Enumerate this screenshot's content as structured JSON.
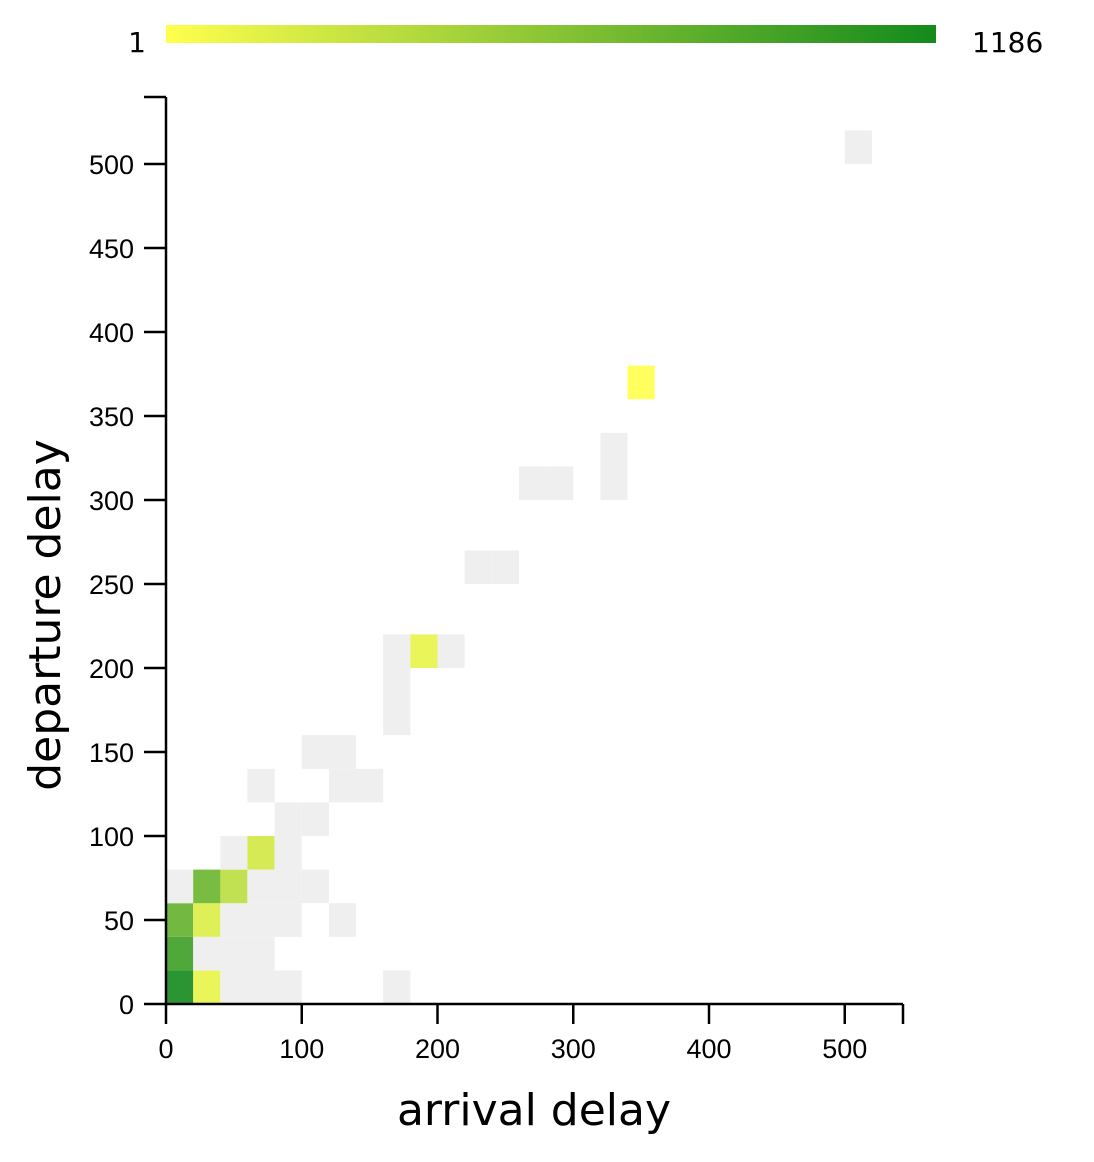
{
  "chart_data": {
    "type": "heatmap",
    "title": "",
    "xlabel": "arrival delay",
    "ylabel": "departure delay",
    "xlim": [
      0,
      545
    ],
    "ylim": [
      0,
      540
    ],
    "x_ticks": [
      0,
      100,
      200,
      300,
      400,
      500
    ],
    "y_ticks": [
      0,
      50,
      100,
      150,
      200,
      250,
      300,
      350,
      400,
      450,
      500
    ],
    "grid": false,
    "legend": {
      "type": "color-scale",
      "placement": "top",
      "min_label": "1",
      "max_label": "1186",
      "min_color": "#ffff4d",
      "max_color": "#138a1c"
    },
    "low_count_color": "#efefef",
    "cells": [
      {
        "x0": 0,
        "x1": 20,
        "y0": 0,
        "y1": 20,
        "count": 1186
      },
      {
        "x0": 20,
        "x1": 40,
        "y0": 0,
        "y1": 20,
        "count": 2
      },
      {
        "x0": 40,
        "x1": 60,
        "y0": 0,
        "y1": 20,
        "count": 0
      },
      {
        "x0": 60,
        "x1": 80,
        "y0": 0,
        "y1": 20,
        "count": 0
      },
      {
        "x0": 80,
        "x1": 100,
        "y0": 0,
        "y1": 20,
        "count": 0
      },
      {
        "x0": 160,
        "x1": 180,
        "y0": 0,
        "y1": 20,
        "count": 0
      },
      {
        "x0": 0,
        "x1": 20,
        "y0": 20,
        "y1": 40,
        "count": 330
      },
      {
        "x0": 20,
        "x1": 40,
        "y0": 20,
        "y1": 40,
        "count": 0
      },
      {
        "x0": 40,
        "x1": 60,
        "y0": 20,
        "y1": 40,
        "count": 0
      },
      {
        "x0": 60,
        "x1": 80,
        "y0": 20,
        "y1": 40,
        "count": 0
      },
      {
        "x0": 0,
        "x1": 20,
        "y0": 40,
        "y1": 60,
        "count": 110
      },
      {
        "x0": 20,
        "x1": 40,
        "y0": 40,
        "y1": 60,
        "count": 3
      },
      {
        "x0": 40,
        "x1": 60,
        "y0": 40,
        "y1": 60,
        "count": 0
      },
      {
        "x0": 60,
        "x1": 80,
        "y0": 40,
        "y1": 60,
        "count": 0
      },
      {
        "x0": 80,
        "x1": 100,
        "y0": 40,
        "y1": 60,
        "count": 0
      },
      {
        "x0": 120,
        "x1": 140,
        "y0": 40,
        "y1": 60,
        "count": 0
      },
      {
        "x0": 0,
        "x1": 20,
        "y0": 60,
        "y1": 80,
        "count": 0
      },
      {
        "x0": 20,
        "x1": 40,
        "y0": 60,
        "y1": 80,
        "count": 90
      },
      {
        "x0": 40,
        "x1": 60,
        "y0": 60,
        "y1": 80,
        "count": 8
      },
      {
        "x0": 60,
        "x1": 80,
        "y0": 60,
        "y1": 80,
        "count": 0
      },
      {
        "x0": 80,
        "x1": 100,
        "y0": 60,
        "y1": 80,
        "count": 0
      },
      {
        "x0": 100,
        "x1": 120,
        "y0": 60,
        "y1": 80,
        "count": 0
      },
      {
        "x0": 40,
        "x1": 60,
        "y0": 80,
        "y1": 100,
        "count": 0
      },
      {
        "x0": 60,
        "x1": 80,
        "y0": 80,
        "y1": 100,
        "count": 4
      },
      {
        "x0": 80,
        "x1": 100,
        "y0": 80,
        "y1": 100,
        "count": 0
      },
      {
        "x0": 80,
        "x1": 100,
        "y0": 100,
        "y1": 120,
        "count": 0
      },
      {
        "x0": 100,
        "x1": 120,
        "y0": 100,
        "y1": 120,
        "count": 0
      },
      {
        "x0": 60,
        "x1": 80,
        "y0": 120,
        "y1": 140,
        "count": 0
      },
      {
        "x0": 120,
        "x1": 140,
        "y0": 120,
        "y1": 140,
        "count": 0
      },
      {
        "x0": 140,
        "x1": 160,
        "y0": 120,
        "y1": 140,
        "count": 0
      },
      {
        "x0": 100,
        "x1": 120,
        "y0": 140,
        "y1": 160,
        "count": 0
      },
      {
        "x0": 120,
        "x1": 140,
        "y0": 140,
        "y1": 160,
        "count": 0
      },
      {
        "x0": 160,
        "x1": 180,
        "y0": 160,
        "y1": 180,
        "count": 0
      },
      {
        "x0": 160,
        "x1": 180,
        "y0": 180,
        "y1": 200,
        "count": 0
      },
      {
        "x0": 160,
        "x1": 180,
        "y0": 200,
        "y1": 220,
        "count": 0
      },
      {
        "x0": 180,
        "x1": 200,
        "y0": 200,
        "y1": 220,
        "count": 2
      },
      {
        "x0": 200,
        "x1": 220,
        "y0": 200,
        "y1": 220,
        "count": 0
      },
      {
        "x0": 220,
        "x1": 240,
        "y0": 250,
        "y1": 270,
        "count": 0
      },
      {
        "x0": 240,
        "x1": 260,
        "y0": 250,
        "y1": 270,
        "count": 0
      },
      {
        "x0": 260,
        "x1": 280,
        "y0": 300,
        "y1": 320,
        "count": 0
      },
      {
        "x0": 280,
        "x1": 300,
        "y0": 300,
        "y1": 320,
        "count": 0
      },
      {
        "x0": 320,
        "x1": 340,
        "y0": 300,
        "y1": 320,
        "count": 0
      },
      {
        "x0": 320,
        "x1": 340,
        "y0": 320,
        "y1": 340,
        "count": 0
      },
      {
        "x0": 340,
        "x1": 360,
        "y0": 360,
        "y1": 380,
        "count": 1
      },
      {
        "x0": 500,
        "x1": 520,
        "y0": 500,
        "y1": 520,
        "count": 0
      }
    ]
  }
}
